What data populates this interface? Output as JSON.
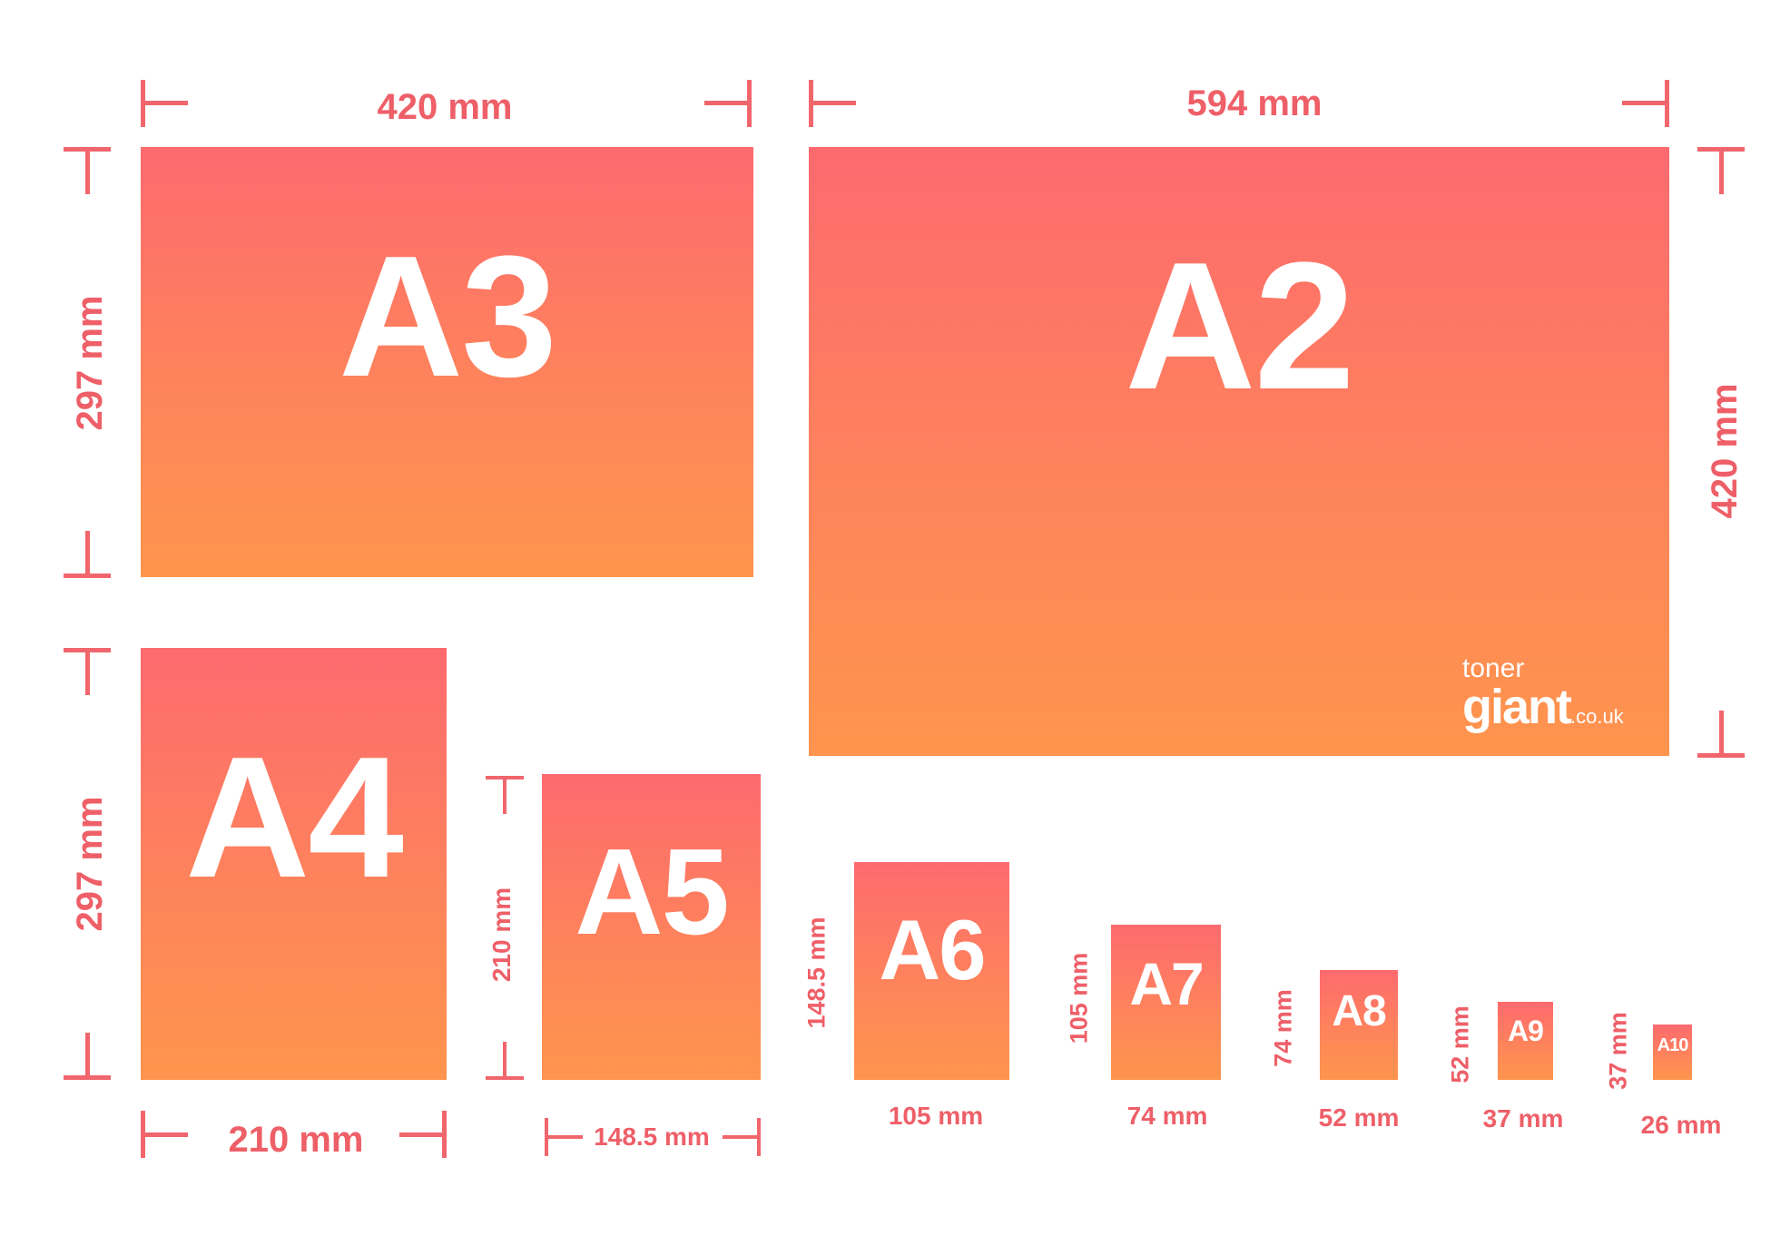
{
  "sheets": {
    "a3": {
      "label": "A3",
      "width": "420 mm",
      "height": "297 mm"
    },
    "a2": {
      "label": "A2",
      "width": "594 mm",
      "height": "420 mm"
    },
    "a4": {
      "label": "A4",
      "width": "210 mm",
      "height": "297 mm"
    },
    "a5": {
      "label": "A5",
      "width": "148.5 mm",
      "height": "210 mm"
    },
    "a6": {
      "label": "A6",
      "width": "105 mm",
      "height": "148.5 mm"
    },
    "a7": {
      "label": "A7",
      "width": "74 mm",
      "height": "105 mm"
    },
    "a8": {
      "label": "A8",
      "width": "52 mm",
      "height": "74 mm"
    },
    "a9": {
      "label": "A9",
      "width": "37 mm",
      "height": "52 mm"
    },
    "a10": {
      "label": "A10",
      "width": "26 mm",
      "height": "37 mm"
    }
  },
  "logo": {
    "top": "toner",
    "main": "giant",
    "suffix": ".co.uk"
  },
  "colors": {
    "sheet_top": "#fd6a6f",
    "sheet_bottom": "#fe944d",
    "dimension": "#ee5f68"
  }
}
